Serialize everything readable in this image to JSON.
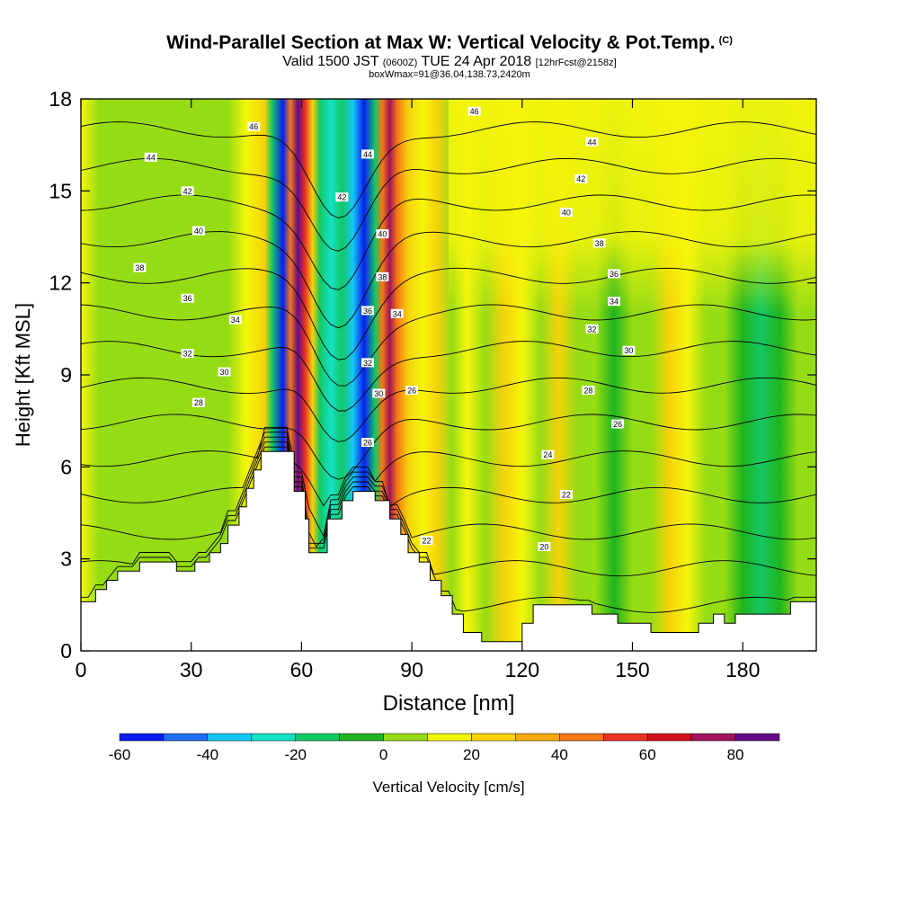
{
  "header": {
    "title": "Wind-Parallel Section at Max W: Vertical Velocity & Pot.Temp.",
    "copyright": "(C)",
    "valid_prefix": "Valid 1500 JST",
    "valid_utc": "(0600Z)",
    "valid_date": "TUE 24 Apr 2018",
    "forecast": "[12hrFcst@2158z]",
    "boxwmax": "boxWmax=91@36.04,138.73,2420m"
  },
  "chart_data": {
    "type": "heatmap",
    "title": "Wind-Parallel Section at Max W: Vertical Velocity & Pot.Temp.",
    "xlabel": "Distance [nm]",
    "ylabel": "Height [Kft MSL]",
    "xlim": [
      0,
      200
    ],
    "ylim": [
      0,
      18
    ],
    "xticks": [
      0,
      30,
      60,
      90,
      120,
      150,
      180
    ],
    "yticks": [
      0,
      3,
      6,
      9,
      12,
      15,
      18
    ],
    "colorbar": {
      "label": "Vertical Velocity [cm/s]",
      "ticks": [
        -60,
        -40,
        -20,
        0,
        20,
        40,
        60,
        80
      ],
      "levels": [
        -60,
        -50,
        -40,
        -30,
        -20,
        -10,
        0,
        10,
        20,
        30,
        40,
        50,
        60,
        70,
        80,
        90
      ],
      "colors": [
        "#0a1ef0",
        "#1e6ef5",
        "#14c8f5",
        "#14e1c8",
        "#14c864",
        "#1eb41e",
        "#96dc14",
        "#f5f50a",
        "#f5d20a",
        "#f5aa0a",
        "#f57814",
        "#eb321e",
        "#d20f1e",
        "#a0145a",
        "#640a8c"
      ]
    },
    "max_w": {
      "value": 91,
      "lat": 36.04,
      "lon": 138.73,
      "height_m": 2420
    },
    "columns": [
      {
        "x": 0,
        "w": 10
      },
      {
        "x": 5,
        "w": 5
      },
      {
        "x": 10,
        "w": 5
      },
      {
        "x": 15,
        "w": 0
      },
      {
        "x": 20,
        "w": 5
      },
      {
        "x": 25,
        "w": 0
      },
      {
        "x": 30,
        "w": 5
      },
      {
        "x": 35,
        "w": 0
      },
      {
        "x": 40,
        "w": 5
      },
      {
        "x": 45,
        "w": 10
      },
      {
        "x": 50,
        "w": 20
      },
      {
        "x": 52,
        "w": -20
      },
      {
        "x": 55,
        "w": -60
      },
      {
        "x": 57,
        "w": 40
      },
      {
        "x": 59,
        "w": 85
      },
      {
        "x": 61,
        "w": 50
      },
      {
        "x": 63,
        "w": 20
      },
      {
        "x": 65,
        "w": -20
      },
      {
        "x": 68,
        "w": -30
      },
      {
        "x": 71,
        "w": -20
      },
      {
        "x": 74,
        "w": -40
      },
      {
        "x": 77,
        "w": -60
      },
      {
        "x": 80,
        "w": -20
      },
      {
        "x": 82,
        "w": 40
      },
      {
        "x": 84,
        "w": 70
      },
      {
        "x": 86,
        "w": 40
      },
      {
        "x": 89,
        "w": 20
      },
      {
        "x": 93,
        "w": 10
      },
      {
        "x": 97,
        "w": 20
      },
      {
        "x": 101,
        "w": 5
      },
      {
        "x": 105,
        "w": 15
      },
      {
        "x": 110,
        "w": 5
      },
      {
        "x": 115,
        "w": 20
      },
      {
        "x": 120,
        "w": 10
      },
      {
        "x": 125,
        "w": 5
      },
      {
        "x": 130,
        "w": 20
      },
      {
        "x": 135,
        "w": 5
      },
      {
        "x": 140,
        "w": 0
      },
      {
        "x": 145,
        "w": -5
      },
      {
        "x": 150,
        "w": 0
      },
      {
        "x": 155,
        "w": 5
      },
      {
        "x": 160,
        "w": 20
      },
      {
        "x": 165,
        "w": 15
      },
      {
        "x": 170,
        "w": 5
      },
      {
        "x": 175,
        "w": 0
      },
      {
        "x": 180,
        "w": -5
      },
      {
        "x": 185,
        "w": -15
      },
      {
        "x": 190,
        "w": -5
      },
      {
        "x": 195,
        "w": 5
      },
      {
        "x": 200,
        "w": 5
      }
    ],
    "upper_band": {
      "above_kft": 13,
      "w": 15,
      "x_range": [
        100,
        200
      ]
    },
    "terrain": [
      {
        "x": 0,
        "h": 1.6
      },
      {
        "x": 4,
        "h": 1.6
      },
      {
        "x": 4,
        "h": 2.0
      },
      {
        "x": 7,
        "h": 2.0
      },
      {
        "x": 7,
        "h": 2.3
      },
      {
        "x": 10,
        "h": 2.3
      },
      {
        "x": 10,
        "h": 2.6
      },
      {
        "x": 16,
        "h": 2.6
      },
      {
        "x": 16,
        "h": 2.9
      },
      {
        "x": 26,
        "h": 2.9
      },
      {
        "x": 26,
        "h": 2.6
      },
      {
        "x": 31,
        "h": 2.6
      },
      {
        "x": 31,
        "h": 2.9
      },
      {
        "x": 35,
        "h": 2.9
      },
      {
        "x": 35,
        "h": 3.2
      },
      {
        "x": 38,
        "h": 3.2
      },
      {
        "x": 38,
        "h": 3.5
      },
      {
        "x": 40,
        "h": 3.5
      },
      {
        "x": 40,
        "h": 4.1
      },
      {
        "x": 43,
        "h": 4.1
      },
      {
        "x": 43,
        "h": 4.7
      },
      {
        "x": 45,
        "h": 4.7
      },
      {
        "x": 45,
        "h": 5.3
      },
      {
        "x": 47,
        "h": 5.3
      },
      {
        "x": 47,
        "h": 5.9
      },
      {
        "x": 49,
        "h": 5.9
      },
      {
        "x": 49,
        "h": 6.5
      },
      {
        "x": 58,
        "h": 6.5
      },
      {
        "x": 58,
        "h": 5.2
      },
      {
        "x": 61,
        "h": 5.2
      },
      {
        "x": 61,
        "h": 4.3
      },
      {
        "x": 62,
        "h": 4.3
      },
      {
        "x": 62,
        "h": 3.2
      },
      {
        "x": 67,
        "h": 3.2
      },
      {
        "x": 67,
        "h": 4.3
      },
      {
        "x": 71,
        "h": 4.3
      },
      {
        "x": 71,
        "h": 4.9
      },
      {
        "x": 74,
        "h": 4.9
      },
      {
        "x": 74,
        "h": 5.2
      },
      {
        "x": 80,
        "h": 5.2
      },
      {
        "x": 80,
        "h": 4.9
      },
      {
        "x": 84,
        "h": 4.9
      },
      {
        "x": 84,
        "h": 4.3
      },
      {
        "x": 87,
        "h": 4.3
      },
      {
        "x": 87,
        "h": 3.8
      },
      {
        "x": 89,
        "h": 3.8
      },
      {
        "x": 89,
        "h": 3.2
      },
      {
        "x": 92,
        "h": 3.2
      },
      {
        "x": 92,
        "h": 2.9
      },
      {
        "x": 95,
        "h": 2.9
      },
      {
        "x": 95,
        "h": 2.3
      },
      {
        "x": 98,
        "h": 2.3
      },
      {
        "x": 98,
        "h": 1.8
      },
      {
        "x": 101,
        "h": 1.8
      },
      {
        "x": 101,
        "h": 1.2
      },
      {
        "x": 104,
        "h": 1.2
      },
      {
        "x": 104,
        "h": 0.6
      },
      {
        "x": 109,
        "h": 0.6
      },
      {
        "x": 109,
        "h": 0.3
      },
      {
        "x": 120,
        "h": 0.3
      },
      {
        "x": 120,
        "h": 0.9
      },
      {
        "x": 123,
        "h": 0.9
      },
      {
        "x": 123,
        "h": 1.5
      },
      {
        "x": 139,
        "h": 1.5
      },
      {
        "x": 139,
        "h": 1.2
      },
      {
        "x": 146,
        "h": 1.2
      },
      {
        "x": 146,
        "h": 0.9
      },
      {
        "x": 155,
        "h": 0.9
      },
      {
        "x": 155,
        "h": 0.6
      },
      {
        "x": 168,
        "h": 0.6
      },
      {
        "x": 168,
        "h": 0.9
      },
      {
        "x": 172,
        "h": 0.9
      },
      {
        "x": 172,
        "h": 1.2
      },
      {
        "x": 175,
        "h": 1.2
      },
      {
        "x": 175,
        "h": 0.9
      },
      {
        "x": 178,
        "h": 0.9
      },
      {
        "x": 178,
        "h": 1.2
      },
      {
        "x": 193,
        "h": 1.2
      },
      {
        "x": 193,
        "h": 1.6
      },
      {
        "x": 200,
        "h": 1.6
      }
    ],
    "isentropes": {
      "levels": [
        20,
        22,
        24,
        26,
        28,
        30,
        32,
        34,
        36,
        38,
        40,
        42,
        44,
        46
      ],
      "labels": [
        {
          "text": "46",
          "x": 47,
          "y": 17.1
        },
        {
          "text": "44",
          "x": 19,
          "y": 16.1
        },
        {
          "text": "42",
          "x": 29,
          "y": 15.0
        },
        {
          "text": "40",
          "x": 32,
          "y": 13.7
        },
        {
          "text": "38",
          "x": 16,
          "y": 12.5
        },
        {
          "text": "36",
          "x": 29,
          "y": 11.5
        },
        {
          "text": "34",
          "x": 42,
          "y": 10.8
        },
        {
          "text": "32",
          "x": 29,
          "y": 9.7
        },
        {
          "text": "30",
          "x": 39,
          "y": 9.1
        },
        {
          "text": "28",
          "x": 32,
          "y": 8.1
        },
        {
          "text": "46",
          "x": 107,
          "y": 17.6
        },
        {
          "text": "44",
          "x": 78,
          "y": 16.2
        },
        {
          "text": "42",
          "x": 71,
          "y": 14.8
        },
        {
          "text": "40",
          "x": 82,
          "y": 13.6
        },
        {
          "text": "38",
          "x": 82,
          "y": 12.2
        },
        {
          "text": "36",
          "x": 78,
          "y": 11.1
        },
        {
          "text": "34",
          "x": 86,
          "y": 11.0
        },
        {
          "text": "32",
          "x": 78,
          "y": 9.4
        },
        {
          "text": "30",
          "x": 81,
          "y": 8.4
        },
        {
          "text": "26",
          "x": 90,
          "y": 8.5
        },
        {
          "text": "26",
          "x": 78,
          "y": 6.8
        },
        {
          "text": "22",
          "x": 94,
          "y": 3.6
        },
        {
          "text": "44",
          "x": 139,
          "y": 16.6
        },
        {
          "text": "42",
          "x": 136,
          "y": 15.4
        },
        {
          "text": "40",
          "x": 132,
          "y": 14.3
        },
        {
          "text": "38",
          "x": 141,
          "y": 13.3
        },
        {
          "text": "36",
          "x": 145,
          "y": 12.3
        },
        {
          "text": "34",
          "x": 145,
          "y": 11.4
        },
        {
          "text": "32",
          "x": 139,
          "y": 10.5
        },
        {
          "text": "30",
          "x": 149,
          "y": 9.8
        },
        {
          "text": "28",
          "x": 138,
          "y": 8.5
        },
        {
          "text": "26",
          "x": 146,
          "y": 7.4
        },
        {
          "text": "24",
          "x": 127,
          "y": 6.4
        },
        {
          "text": "22",
          "x": 132,
          "y": 5.1
        },
        {
          "text": "20",
          "x": 126,
          "y": 3.4
        }
      ]
    }
  }
}
